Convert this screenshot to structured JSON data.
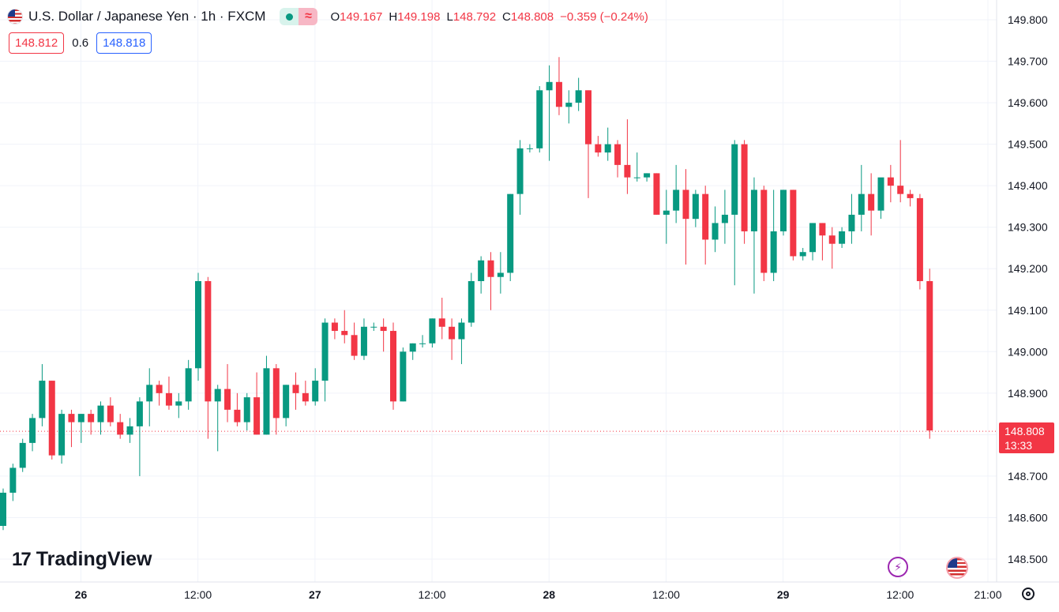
{
  "header": {
    "symbol_title": "U.S. Dollar / Japanese Yen · 1h · FXCM",
    "flag_icon": "us-flag-icon",
    "market_status_icon": "market-open-dot-icon",
    "wave_icon": "wave-icon",
    "ohlc": {
      "o_label": "O",
      "o_value": "149.167",
      "h_label": "H",
      "h_value": "149.198",
      "l_label": "L",
      "l_value": "148.792",
      "c_label": "C",
      "c_value": "148.808",
      "change": "−0.359 (−0.24%)"
    }
  },
  "quote": {
    "sell": "148.812",
    "spread": "0.6",
    "buy": "148.818"
  },
  "logo_text": "TradingView",
  "price_badge": {
    "price": "148.808",
    "countdown": "13:33"
  },
  "colors": {
    "up": "#089981",
    "down": "#f23645",
    "grid": "#f0f3fa",
    "axis_text": "#131722"
  },
  "chart_data": {
    "type": "candlestick",
    "title": "U.S. Dollar / Japanese Yen · 1h · FXCM",
    "ylim": [
      148.45,
      149.82
    ],
    "y_ticks": [
      "149.800",
      "149.700",
      "149.600",
      "149.500",
      "149.400",
      "149.300",
      "149.200",
      "149.100",
      "149.000",
      "148.900",
      "148.800",
      "148.700",
      "148.600",
      "148.500"
    ],
    "x_ticks": [
      {
        "label": "26",
        "bar": 7,
        "bold": true
      },
      {
        "label": "12:00",
        "bar": 19,
        "bold": false
      },
      {
        "label": "27",
        "bar": 31,
        "bold": true
      },
      {
        "label": "12:00",
        "bar": 43,
        "bold": false
      },
      {
        "label": "28",
        "bar": 55,
        "bold": true
      },
      {
        "label": "12:00",
        "bar": 67,
        "bold": false
      },
      {
        "label": "29",
        "bar": 79,
        "bold": true
      },
      {
        "label": "12:00",
        "bar": 91,
        "bold": false
      },
      {
        "label": "21:00",
        "bar": 100,
        "bold": false
      }
    ],
    "last_price": 148.808,
    "ohlc": [
      [
        148.58,
        148.67,
        148.57,
        148.66
      ],
      [
        148.66,
        148.73,
        148.64,
        148.72
      ],
      [
        148.72,
        148.79,
        148.71,
        148.78
      ],
      [
        148.78,
        148.85,
        148.76,
        148.84
      ],
      [
        148.84,
        148.97,
        148.82,
        148.93
      ],
      [
        148.93,
        148.93,
        148.74,
        148.75
      ],
      [
        148.75,
        148.86,
        148.73,
        148.85
      ],
      [
        148.85,
        148.86,
        148.77,
        148.83
      ],
      [
        148.83,
        148.85,
        148.78,
        148.85
      ],
      [
        148.85,
        148.86,
        148.8,
        148.83
      ],
      [
        148.83,
        148.88,
        148.8,
        148.87
      ],
      [
        148.87,
        148.89,
        148.82,
        148.83
      ],
      [
        148.83,
        148.85,
        148.79,
        148.8
      ],
      [
        148.8,
        148.84,
        148.78,
        148.82
      ],
      [
        148.82,
        148.89,
        148.7,
        148.88
      ],
      [
        148.88,
        148.96,
        148.82,
        148.92
      ],
      [
        148.92,
        148.93,
        148.87,
        148.9
      ],
      [
        148.9,
        148.94,
        148.86,
        148.87
      ],
      [
        148.87,
        148.9,
        148.84,
        148.88
      ],
      [
        148.88,
        148.98,
        148.86,
        148.96
      ],
      [
        148.96,
        149.19,
        148.93,
        149.17
      ],
      [
        149.17,
        149.18,
        148.79,
        148.88
      ],
      [
        148.88,
        148.92,
        148.76,
        148.91
      ],
      [
        148.91,
        148.97,
        148.83,
        148.86
      ],
      [
        148.86,
        148.9,
        148.82,
        148.83
      ],
      [
        148.83,
        148.9,
        148.81,
        148.89
      ],
      [
        148.89,
        148.95,
        148.8,
        148.8
      ],
      [
        148.8,
        148.99,
        148.8,
        148.96
      ],
      [
        148.96,
        148.97,
        148.8,
        148.84
      ],
      [
        148.84,
        148.92,
        148.82,
        148.92
      ],
      [
        148.92,
        148.95,
        148.86,
        148.9
      ],
      [
        148.9,
        148.93,
        148.87,
        148.88
      ],
      [
        148.88,
        148.96,
        148.87,
        148.93
      ],
      [
        148.93,
        149.08,
        148.88,
        149.07
      ],
      [
        149.07,
        149.08,
        149.03,
        149.05
      ],
      [
        149.05,
        149.1,
        149.02,
        149.04
      ],
      [
        149.04,
        149.07,
        148.98,
        148.99
      ],
      [
        148.99,
        149.08,
        148.98,
        149.06
      ],
      [
        149.06,
        149.07,
        149.05,
        149.06
      ],
      [
        149.06,
        149.08,
        149.0,
        149.05
      ],
      [
        149.05,
        149.07,
        148.86,
        148.88
      ],
      [
        148.88,
        149.01,
        148.88,
        149.0
      ],
      [
        149.0,
        149.02,
        148.98,
        149.02
      ],
      [
        149.02,
        149.04,
        149.01,
        149.02
      ],
      [
        149.02,
        149.08,
        149.01,
        149.08
      ],
      [
        149.08,
        149.13,
        149.03,
        149.06
      ],
      [
        149.06,
        149.08,
        148.98,
        149.03
      ],
      [
        149.03,
        149.08,
        148.97,
        149.07
      ],
      [
        149.07,
        149.19,
        149.06,
        149.17
      ],
      [
        149.17,
        149.23,
        149.14,
        149.22
      ],
      [
        149.22,
        149.24,
        149.1,
        149.18
      ],
      [
        149.18,
        149.24,
        149.14,
        149.19
      ],
      [
        149.19,
        149.38,
        149.17,
        149.38
      ],
      [
        149.38,
        149.51,
        149.33,
        149.49
      ],
      [
        149.49,
        149.5,
        149.48,
        149.49
      ],
      [
        149.49,
        149.64,
        149.48,
        149.63
      ],
      [
        149.63,
        149.69,
        149.46,
        149.65
      ],
      [
        149.65,
        149.71,
        149.57,
        149.59
      ],
      [
        149.59,
        149.63,
        149.55,
        149.6
      ],
      [
        149.6,
        149.66,
        149.58,
        149.63
      ],
      [
        149.63,
        149.63,
        149.37,
        149.5
      ],
      [
        149.5,
        149.52,
        149.47,
        149.48
      ],
      [
        149.48,
        149.54,
        149.46,
        149.5
      ],
      [
        149.5,
        149.51,
        149.42,
        149.45
      ],
      [
        149.45,
        149.56,
        149.38,
        149.42
      ],
      [
        149.42,
        149.48,
        149.41,
        149.42
      ],
      [
        149.42,
        149.43,
        149.41,
        149.43
      ],
      [
        149.43,
        149.43,
        149.33,
        149.33
      ],
      [
        149.33,
        149.39,
        149.26,
        149.34
      ],
      [
        149.34,
        149.45,
        149.31,
        149.39
      ],
      [
        149.39,
        149.44,
        149.21,
        149.32
      ],
      [
        149.32,
        149.39,
        149.3,
        149.38
      ],
      [
        149.38,
        149.4,
        149.21,
        149.27
      ],
      [
        149.27,
        149.35,
        149.24,
        149.31
      ],
      [
        149.31,
        149.39,
        149.26,
        149.33
      ],
      [
        149.33,
        149.51,
        149.16,
        149.5
      ],
      [
        149.5,
        149.51,
        149.26,
        149.29
      ],
      [
        149.29,
        149.42,
        149.14,
        149.39
      ],
      [
        149.39,
        149.4,
        149.17,
        149.19
      ],
      [
        149.19,
        149.39,
        149.17,
        149.29
      ],
      [
        149.29,
        149.39,
        149.28,
        149.39
      ],
      [
        149.39,
        149.39,
        149.22,
        149.23
      ],
      [
        149.23,
        149.25,
        149.22,
        149.24
      ],
      [
        149.24,
        149.31,
        149.22,
        149.31
      ],
      [
        149.31,
        149.31,
        149.22,
        149.28
      ],
      [
        149.28,
        149.3,
        149.2,
        149.26
      ],
      [
        149.26,
        149.3,
        149.25,
        149.29
      ],
      [
        149.29,
        149.38,
        149.26,
        149.33
      ],
      [
        149.33,
        149.45,
        149.29,
        149.38
      ],
      [
        149.38,
        149.43,
        149.28,
        149.34
      ],
      [
        149.34,
        149.41,
        149.32,
        149.42
      ],
      [
        149.42,
        149.45,
        149.36,
        149.4
      ],
      [
        149.4,
        149.51,
        149.36,
        149.38
      ],
      [
        149.38,
        149.39,
        149.35,
        149.37
      ],
      [
        149.37,
        149.38,
        149.15,
        149.17
      ],
      [
        149.17,
        149.2,
        148.79,
        148.81
      ]
    ]
  }
}
